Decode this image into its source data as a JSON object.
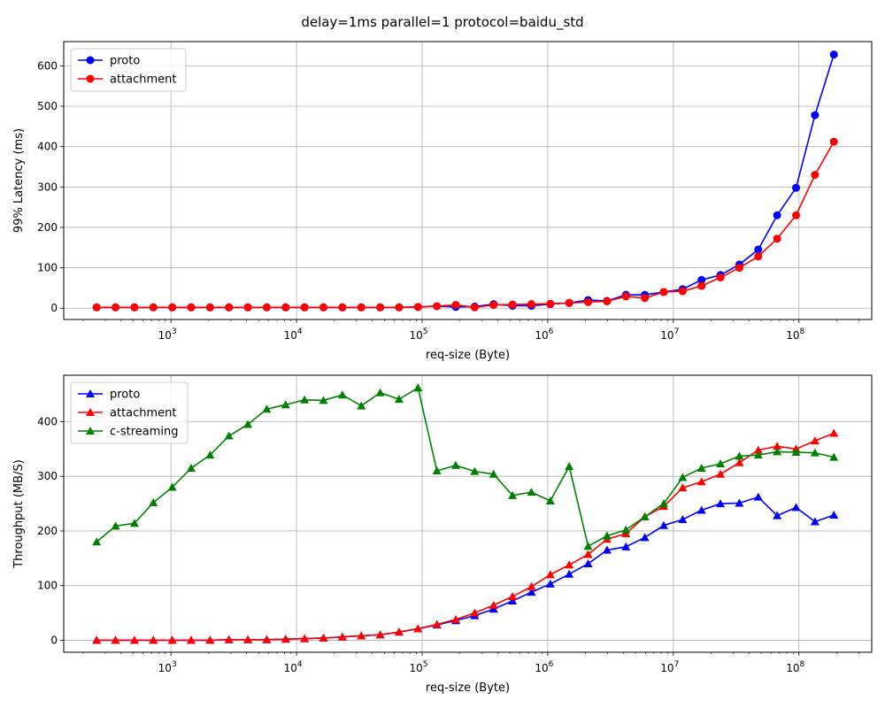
{
  "suptitle": "delay=1ms parallel=1 protocol=baidu_std",
  "chart_data": [
    {
      "type": "line",
      "xscale": "log",
      "xlabel": "req-size (Byte)",
      "ylabel": "99% Latency (ms)",
      "xlim": [
        140,
        380000000
      ],
      "ylim": [
        -28,
        660
      ],
      "yticks": [
        0,
        100,
        200,
        300,
        400,
        500,
        600
      ],
      "xticks": [
        {
          "exp": "3",
          "value": 1000
        },
        {
          "exp": "4",
          "value": 10000
        },
        {
          "exp": "5",
          "value": 100000
        },
        {
          "exp": "6",
          "value": 1000000
        },
        {
          "exp": "7",
          "value": 10000000
        },
        {
          "exp": "8",
          "value": 100000000
        }
      ],
      "tick_base": "10",
      "grid": true,
      "legend": "upper left",
      "marker": "circle",
      "x": [
        256,
        362,
        512,
        724,
        1024,
        1448,
        2048,
        2896,
        4096,
        5792,
        8192,
        11585,
        16384,
        23170,
        32768,
        46341,
        65536,
        92682,
        131072,
        185364,
        262144,
        370728,
        524288,
        741455,
        1048576,
        1482910,
        2097152,
        2965821,
        4194304,
        5931642,
        8388608,
        11863283,
        16777216,
        23726566,
        33554432,
        47453133,
        67108864,
        94906266,
        134217728,
        189812531
      ],
      "series": [
        {
          "name": "proto",
          "color": "#0000ff",
          "values": [
            2,
            2,
            2,
            2,
            2,
            2,
            2,
            2,
            2,
            2,
            2,
            2,
            2,
            2,
            2,
            2,
            2,
            3,
            5,
            3,
            4,
            10,
            6,
            6,
            10,
            13,
            20,
            18,
            33,
            33,
            40,
            47,
            70,
            82,
            108,
            145,
            230,
            298,
            478,
            628
          ]
        },
        {
          "name": "attachment",
          "color": "#ff0000",
          "values": [
            2,
            2,
            2,
            2,
            2,
            2,
            2,
            2,
            2,
            2,
            2,
            2,
            2,
            2,
            2,
            2,
            2,
            3,
            5,
            8,
            2,
            8,
            9,
            10,
            11,
            13,
            15,
            17,
            29,
            25,
            40,
            42,
            55,
            76,
            100,
            128,
            172,
            230,
            330,
            412
          ]
        }
      ]
    },
    {
      "type": "line",
      "xscale": "log",
      "xlabel": "req-size (Byte)",
      "ylabel": "Throughput (MB/S)",
      "xlim": [
        140,
        380000000
      ],
      "ylim": [
        -22,
        485
      ],
      "yticks": [
        0,
        100,
        200,
        300,
        400
      ],
      "xticks": [
        {
          "exp": "3",
          "value": 1000
        },
        {
          "exp": "4",
          "value": 10000
        },
        {
          "exp": "5",
          "value": 100000
        },
        {
          "exp": "6",
          "value": 1000000
        },
        {
          "exp": "7",
          "value": 10000000
        },
        {
          "exp": "8",
          "value": 100000000
        }
      ],
      "tick_base": "10",
      "grid": true,
      "legend": "upper left",
      "marker": "triangle",
      "x": [
        256,
        362,
        512,
        724,
        1024,
        1448,
        2048,
        2896,
        4096,
        5792,
        8192,
        11585,
        16384,
        23170,
        32768,
        46341,
        65536,
        92682,
        131072,
        185364,
        262144,
        370728,
        524288,
        741455,
        1048576,
        1482910,
        2097152,
        2965821,
        4194304,
        5931642,
        8388608,
        11863283,
        16777216,
        23726566,
        33554432,
        47453133,
        67108864,
        94906266,
        134217728,
        189812531
      ],
      "series": [
        {
          "name": "proto",
          "color": "#0000ff",
          "values": [
            0,
            0,
            0,
            0,
            0,
            0,
            0,
            1,
            1,
            1,
            2,
            3,
            4,
            6,
            8,
            10,
            15,
            21,
            28,
            36,
            45,
            57,
            72,
            88,
            103,
            121,
            140,
            165,
            171,
            188,
            210,
            221,
            238,
            250,
            251,
            262,
            228,
            243,
            217,
            229
          ]
        },
        {
          "name": "attachment",
          "color": "#ff0000",
          "values": [
            0,
            0,
            0,
            0,
            0,
            0,
            0,
            1,
            1,
            1,
            2,
            3,
            4,
            6,
            8,
            10,
            15,
            21,
            29,
            38,
            50,
            64,
            80,
            98,
            120,
            138,
            157,
            185,
            195,
            226,
            245,
            279,
            290,
            304,
            325,
            348,
            355,
            350,
            365,
            379
          ]
        },
        {
          "name": "c-streaming",
          "color": "#008000",
          "values": [
            180,
            209,
            214,
            252,
            280,
            315,
            339,
            374,
            395,
            423,
            431,
            440,
            439,
            449,
            429,
            453,
            441,
            462,
            310,
            320,
            309,
            304,
            265,
            271,
            255,
            318,
            172,
            191,
            202,
            226,
            250,
            298,
            315,
            323,
            337,
            339,
            345,
            344,
            343,
            335
          ]
        }
      ]
    }
  ]
}
